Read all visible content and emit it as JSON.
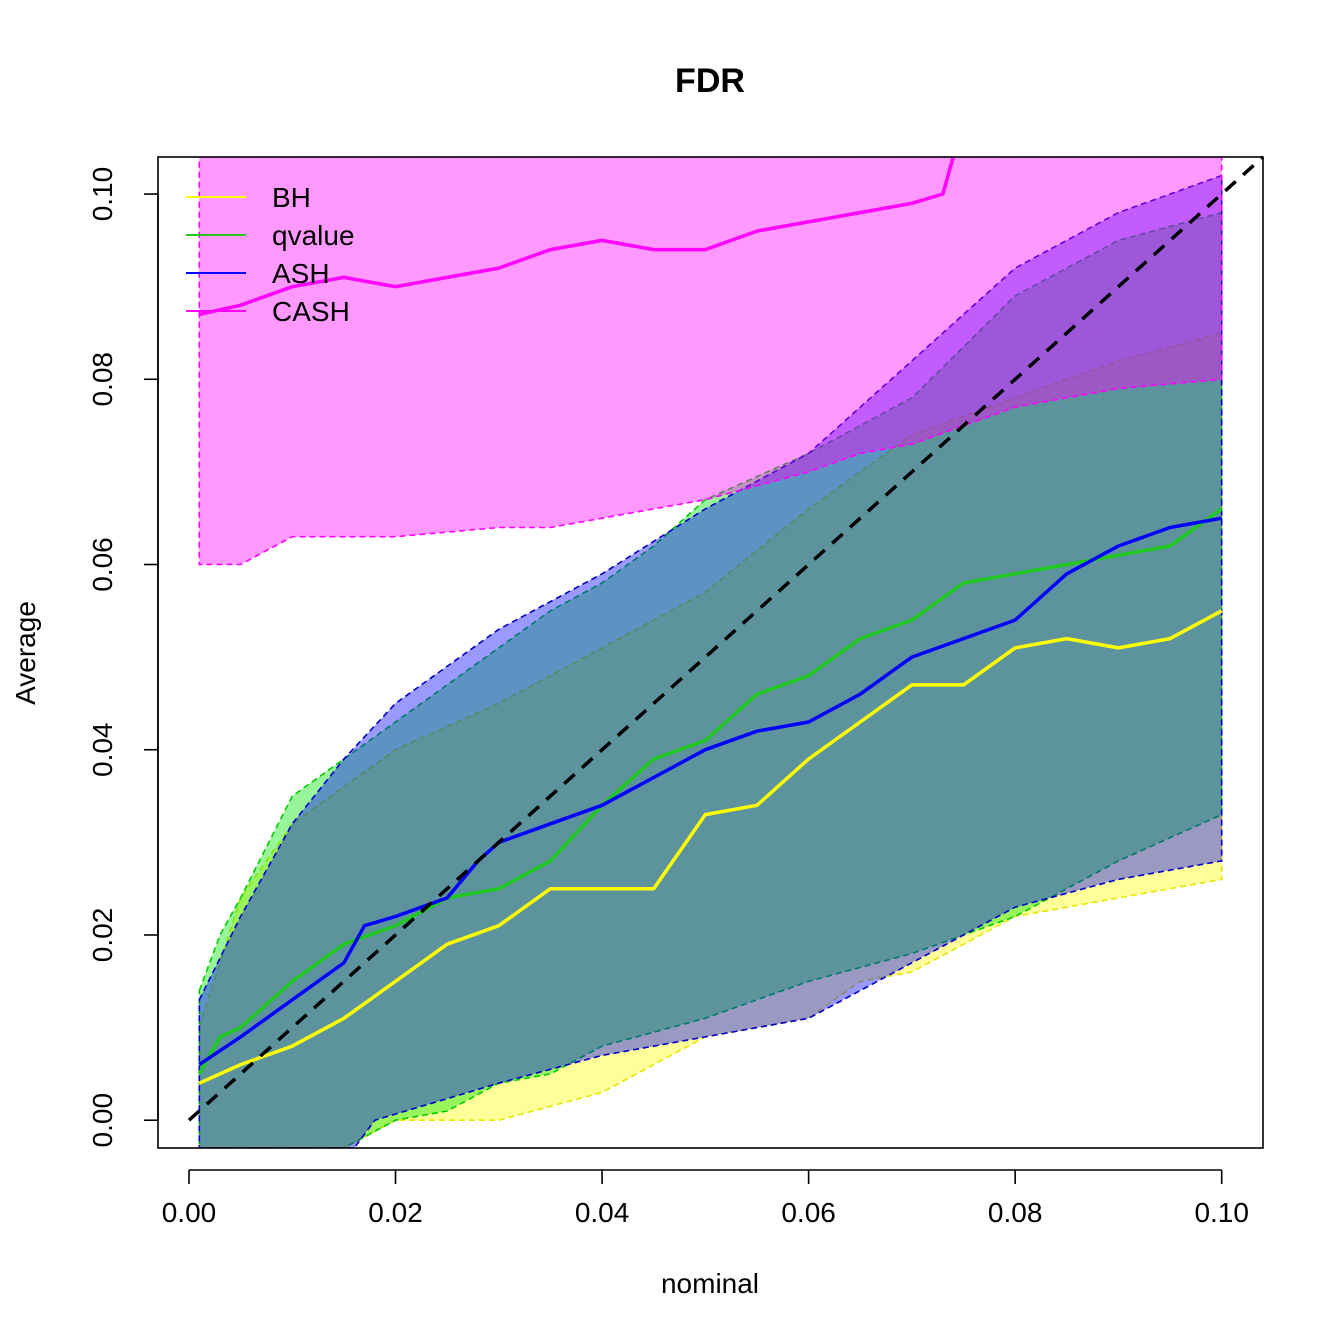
{
  "chart_data": {
    "type": "line",
    "title": "FDR",
    "xlabel": "nominal",
    "ylabel": "Average",
    "xlim": [
      -0.003,
      0.104
    ],
    "ylim": [
      -0.003,
      0.104
    ],
    "x_ticks": [
      0.0,
      0.02,
      0.04,
      0.06,
      0.08,
      0.1
    ],
    "x_tick_labels": [
      "0.00",
      "0.02",
      "0.04",
      "0.06",
      "0.08",
      "0.10"
    ],
    "y_ticks": [
      0.0,
      0.02,
      0.04,
      0.06,
      0.08,
      0.1
    ],
    "y_tick_labels": [
      "0.00",
      "0.02",
      "0.04",
      "0.06",
      "0.08",
      "0.10"
    ],
    "grid": false,
    "legend_position": "top-left",
    "reference_line": {
      "style": "dashed",
      "color": "#000000",
      "from": [
        0.0,
        0.0
      ],
      "to": [
        0.1,
        0.1
      ]
    },
    "series": [
      {
        "name": "BH",
        "color": "#ffff00",
        "band_fill": "rgba(255,255,0,0.40)",
        "band_edge": "#e6e600",
        "points": [
          [
            0.001,
            0.004
          ],
          [
            0.005,
            0.006
          ],
          [
            0.01,
            0.008
          ],
          [
            0.015,
            0.011
          ],
          [
            0.02,
            0.015
          ],
          [
            0.025,
            0.019
          ],
          [
            0.03,
            0.021
          ],
          [
            0.035,
            0.025
          ],
          [
            0.04,
            0.025
          ],
          [
            0.045,
            0.025
          ],
          [
            0.05,
            0.033
          ],
          [
            0.055,
            0.034
          ],
          [
            0.06,
            0.039
          ],
          [
            0.065,
            0.043
          ],
          [
            0.07,
            0.047
          ],
          [
            0.075,
            0.047
          ],
          [
            0.08,
            0.051
          ],
          [
            0.085,
            0.052
          ],
          [
            0.09,
            0.051
          ],
          [
            0.095,
            0.052
          ],
          [
            0.1,
            0.055
          ]
        ],
        "lower": [
          [
            0.001,
            -0.003
          ],
          [
            0.015,
            -0.003
          ],
          [
            0.02,
            0.0
          ],
          [
            0.03,
            0.0
          ],
          [
            0.04,
            0.003
          ],
          [
            0.05,
            0.009
          ],
          [
            0.06,
            0.011
          ],
          [
            0.065,
            0.015
          ],
          [
            0.07,
            0.016
          ],
          [
            0.08,
            0.022
          ],
          [
            0.09,
            0.024
          ],
          [
            0.1,
            0.026
          ]
        ],
        "upper": [
          [
            0.001,
            0.01
          ],
          [
            0.005,
            0.024
          ],
          [
            0.01,
            0.032
          ],
          [
            0.02,
            0.04
          ],
          [
            0.03,
            0.045
          ],
          [
            0.04,
            0.051
          ],
          [
            0.05,
            0.057
          ],
          [
            0.06,
            0.066
          ],
          [
            0.07,
            0.074
          ],
          [
            0.08,
            0.078
          ],
          [
            0.09,
            0.082
          ],
          [
            0.1,
            0.085
          ]
        ]
      },
      {
        "name": "qvalue",
        "color": "#1fc91f",
        "band_fill": "rgba(0,230,0,0.40)",
        "band_edge": "#00cc00",
        "points": [
          [
            0.001,
            0.005
          ],
          [
            0.003,
            0.009
          ],
          [
            0.005,
            0.01
          ],
          [
            0.008,
            0.013
          ],
          [
            0.01,
            0.015
          ],
          [
            0.015,
            0.019
          ],
          [
            0.02,
            0.021
          ],
          [
            0.025,
            0.024
          ],
          [
            0.03,
            0.025
          ],
          [
            0.035,
            0.028
          ],
          [
            0.04,
            0.034
          ],
          [
            0.045,
            0.039
          ],
          [
            0.05,
            0.041
          ],
          [
            0.055,
            0.046
          ],
          [
            0.06,
            0.048
          ],
          [
            0.065,
            0.052
          ],
          [
            0.07,
            0.054
          ],
          [
            0.075,
            0.058
          ],
          [
            0.08,
            0.059
          ],
          [
            0.085,
            0.06
          ],
          [
            0.09,
            0.061
          ],
          [
            0.095,
            0.062
          ],
          [
            0.1,
            0.066
          ]
        ],
        "lower": [
          [
            0.001,
            -0.003
          ],
          [
            0.015,
            -0.003
          ],
          [
            0.02,
            0.0
          ],
          [
            0.025,
            0.001
          ],
          [
            0.03,
            0.004
          ],
          [
            0.035,
            0.005
          ],
          [
            0.04,
            0.008
          ],
          [
            0.05,
            0.011
          ],
          [
            0.06,
            0.015
          ],
          [
            0.07,
            0.018
          ],
          [
            0.08,
            0.022
          ],
          [
            0.09,
            0.028
          ],
          [
            0.1,
            0.033
          ]
        ],
        "upper": [
          [
            0.001,
            0.014
          ],
          [
            0.003,
            0.02
          ],
          [
            0.005,
            0.024
          ],
          [
            0.01,
            0.035
          ],
          [
            0.015,
            0.039
          ],
          [
            0.02,
            0.043
          ],
          [
            0.025,
            0.047
          ],
          [
            0.03,
            0.051
          ],
          [
            0.035,
            0.055
          ],
          [
            0.04,
            0.058
          ],
          [
            0.045,
            0.062
          ],
          [
            0.05,
            0.067
          ],
          [
            0.06,
            0.072
          ],
          [
            0.07,
            0.078
          ],
          [
            0.08,
            0.089
          ],
          [
            0.09,
            0.095
          ],
          [
            0.1,
            0.098
          ]
        ]
      },
      {
        "name": "ASH",
        "color": "#0000ff",
        "band_fill": "rgba(0,0,255,0.40)",
        "band_edge": "#0000cc",
        "points": [
          [
            0.001,
            0.006
          ],
          [
            0.005,
            0.009
          ],
          [
            0.01,
            0.013
          ],
          [
            0.015,
            0.017
          ],
          [
            0.017,
            0.021
          ],
          [
            0.02,
            0.022
          ],
          [
            0.025,
            0.024
          ],
          [
            0.028,
            0.028
          ],
          [
            0.03,
            0.03
          ],
          [
            0.035,
            0.032
          ],
          [
            0.04,
            0.034
          ],
          [
            0.045,
            0.037
          ],
          [
            0.05,
            0.04
          ],
          [
            0.055,
            0.042
          ],
          [
            0.06,
            0.043
          ],
          [
            0.065,
            0.046
          ],
          [
            0.07,
            0.05
          ],
          [
            0.075,
            0.052
          ],
          [
            0.08,
            0.054
          ],
          [
            0.085,
            0.059
          ],
          [
            0.09,
            0.062
          ],
          [
            0.095,
            0.064
          ],
          [
            0.1,
            0.065
          ]
        ],
        "lower": [
          [
            0.001,
            -0.003
          ],
          [
            0.016,
            -0.003
          ],
          [
            0.018,
            0.0
          ],
          [
            0.03,
            0.004
          ],
          [
            0.04,
            0.007
          ],
          [
            0.05,
            0.009
          ],
          [
            0.06,
            0.011
          ],
          [
            0.065,
            0.014
          ],
          [
            0.07,
            0.017
          ],
          [
            0.08,
            0.023
          ],
          [
            0.09,
            0.026
          ],
          [
            0.1,
            0.028
          ]
        ],
        "upper": [
          [
            0.001,
            0.013
          ],
          [
            0.005,
            0.022
          ],
          [
            0.01,
            0.032
          ],
          [
            0.015,
            0.039
          ],
          [
            0.02,
            0.045
          ],
          [
            0.03,
            0.053
          ],
          [
            0.04,
            0.059
          ],
          [
            0.05,
            0.066
          ],
          [
            0.06,
            0.072
          ],
          [
            0.07,
            0.082
          ],
          [
            0.08,
            0.092
          ],
          [
            0.09,
            0.098
          ],
          [
            0.1,
            0.102
          ]
        ]
      },
      {
        "name": "CASH",
        "color": "#ff00ff",
        "band_fill": "rgba(255,0,255,0.40)",
        "band_edge": "#ff00ff",
        "points": [
          [
            0.001,
            0.087
          ],
          [
            0.005,
            0.088
          ],
          [
            0.01,
            0.09
          ],
          [
            0.015,
            0.091
          ],
          [
            0.02,
            0.09
          ],
          [
            0.025,
            0.091
          ],
          [
            0.03,
            0.092
          ],
          [
            0.035,
            0.094
          ],
          [
            0.04,
            0.095
          ],
          [
            0.045,
            0.094
          ],
          [
            0.05,
            0.094
          ],
          [
            0.055,
            0.096
          ],
          [
            0.06,
            0.097
          ],
          [
            0.065,
            0.098
          ],
          [
            0.07,
            0.099
          ],
          [
            0.073,
            0.1
          ],
          [
            0.074,
            0.104
          ]
        ],
        "lower": [
          [
            0.001,
            0.06
          ],
          [
            0.005,
            0.06
          ],
          [
            0.01,
            0.063
          ],
          [
            0.02,
            0.063
          ],
          [
            0.03,
            0.064
          ],
          [
            0.035,
            0.064
          ],
          [
            0.04,
            0.065
          ],
          [
            0.045,
            0.066
          ],
          [
            0.05,
            0.067
          ],
          [
            0.06,
            0.07
          ],
          [
            0.065,
            0.072
          ],
          [
            0.07,
            0.073
          ],
          [
            0.075,
            0.075
          ],
          [
            0.08,
            0.077
          ],
          [
            0.09,
            0.079
          ],
          [
            0.1,
            0.08
          ]
        ],
        "upper": [
          [
            0.001,
            0.104
          ],
          [
            0.1,
            0.104
          ]
        ]
      }
    ]
  }
}
